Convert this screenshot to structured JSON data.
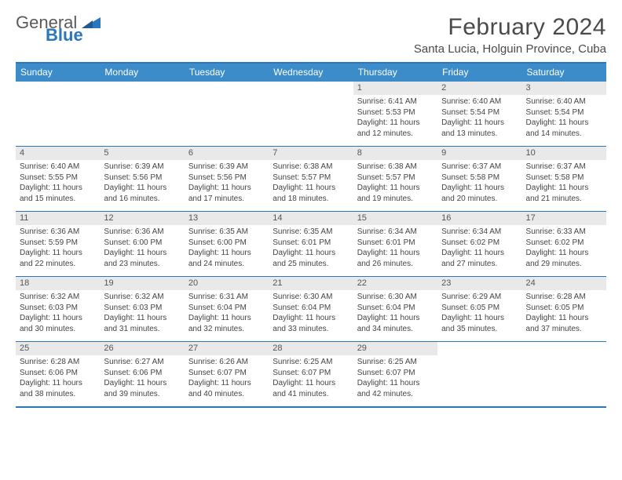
{
  "logo": {
    "word1": "General",
    "word2": "Blue",
    "tri_color": "#2b77be"
  },
  "title": {
    "month": "February 2024",
    "location": "Santa Lucia, Holguin Province, Cuba"
  },
  "colors": {
    "header_bg": "#3b8cc9",
    "border": "#2b77be",
    "daynum_bg": "#e9e9e9",
    "text": "#444444"
  },
  "day_names": [
    "Sunday",
    "Monday",
    "Tuesday",
    "Wednesday",
    "Thursday",
    "Friday",
    "Saturday"
  ],
  "weeks": [
    [
      {
        "empty": true
      },
      {
        "empty": true
      },
      {
        "empty": true
      },
      {
        "empty": true
      },
      {
        "n": "1",
        "sunrise": "6:41 AM",
        "sunset": "5:53 PM",
        "daylight": "11 hours and 12 minutes."
      },
      {
        "n": "2",
        "sunrise": "6:40 AM",
        "sunset": "5:54 PM",
        "daylight": "11 hours and 13 minutes."
      },
      {
        "n": "3",
        "sunrise": "6:40 AM",
        "sunset": "5:54 PM",
        "daylight": "11 hours and 14 minutes."
      }
    ],
    [
      {
        "n": "4",
        "sunrise": "6:40 AM",
        "sunset": "5:55 PM",
        "daylight": "11 hours and 15 minutes."
      },
      {
        "n": "5",
        "sunrise": "6:39 AM",
        "sunset": "5:56 PM",
        "daylight": "11 hours and 16 minutes."
      },
      {
        "n": "6",
        "sunrise": "6:39 AM",
        "sunset": "5:56 PM",
        "daylight": "11 hours and 17 minutes."
      },
      {
        "n": "7",
        "sunrise": "6:38 AM",
        "sunset": "5:57 PM",
        "daylight": "11 hours and 18 minutes."
      },
      {
        "n": "8",
        "sunrise": "6:38 AM",
        "sunset": "5:57 PM",
        "daylight": "11 hours and 19 minutes."
      },
      {
        "n": "9",
        "sunrise": "6:37 AM",
        "sunset": "5:58 PM",
        "daylight": "11 hours and 20 minutes."
      },
      {
        "n": "10",
        "sunrise": "6:37 AM",
        "sunset": "5:58 PM",
        "daylight": "11 hours and 21 minutes."
      }
    ],
    [
      {
        "n": "11",
        "sunrise": "6:36 AM",
        "sunset": "5:59 PM",
        "daylight": "11 hours and 22 minutes."
      },
      {
        "n": "12",
        "sunrise": "6:36 AM",
        "sunset": "6:00 PM",
        "daylight": "11 hours and 23 minutes."
      },
      {
        "n": "13",
        "sunrise": "6:35 AM",
        "sunset": "6:00 PM",
        "daylight": "11 hours and 24 minutes."
      },
      {
        "n": "14",
        "sunrise": "6:35 AM",
        "sunset": "6:01 PM",
        "daylight": "11 hours and 25 minutes."
      },
      {
        "n": "15",
        "sunrise": "6:34 AM",
        "sunset": "6:01 PM",
        "daylight": "11 hours and 26 minutes."
      },
      {
        "n": "16",
        "sunrise": "6:34 AM",
        "sunset": "6:02 PM",
        "daylight": "11 hours and 27 minutes."
      },
      {
        "n": "17",
        "sunrise": "6:33 AM",
        "sunset": "6:02 PM",
        "daylight": "11 hours and 29 minutes."
      }
    ],
    [
      {
        "n": "18",
        "sunrise": "6:32 AM",
        "sunset": "6:03 PM",
        "daylight": "11 hours and 30 minutes."
      },
      {
        "n": "19",
        "sunrise": "6:32 AM",
        "sunset": "6:03 PM",
        "daylight": "11 hours and 31 minutes."
      },
      {
        "n": "20",
        "sunrise": "6:31 AM",
        "sunset": "6:04 PM",
        "daylight": "11 hours and 32 minutes."
      },
      {
        "n": "21",
        "sunrise": "6:30 AM",
        "sunset": "6:04 PM",
        "daylight": "11 hours and 33 minutes."
      },
      {
        "n": "22",
        "sunrise": "6:30 AM",
        "sunset": "6:04 PM",
        "daylight": "11 hours and 34 minutes."
      },
      {
        "n": "23",
        "sunrise": "6:29 AM",
        "sunset": "6:05 PM",
        "daylight": "11 hours and 35 minutes."
      },
      {
        "n": "24",
        "sunrise": "6:28 AM",
        "sunset": "6:05 PM",
        "daylight": "11 hours and 37 minutes."
      }
    ],
    [
      {
        "n": "25",
        "sunrise": "6:28 AM",
        "sunset": "6:06 PM",
        "daylight": "11 hours and 38 minutes."
      },
      {
        "n": "26",
        "sunrise": "6:27 AM",
        "sunset": "6:06 PM",
        "daylight": "11 hours and 39 minutes."
      },
      {
        "n": "27",
        "sunrise": "6:26 AM",
        "sunset": "6:07 PM",
        "daylight": "11 hours and 40 minutes."
      },
      {
        "n": "28",
        "sunrise": "6:25 AM",
        "sunset": "6:07 PM",
        "daylight": "11 hours and 41 minutes."
      },
      {
        "n": "29",
        "sunrise": "6:25 AM",
        "sunset": "6:07 PM",
        "daylight": "11 hours and 42 minutes."
      },
      {
        "empty": true
      },
      {
        "empty": true
      }
    ]
  ],
  "labels": {
    "sunrise_prefix": "Sunrise: ",
    "sunset_prefix": "Sunset: ",
    "daylight_prefix": "Daylight: "
  }
}
